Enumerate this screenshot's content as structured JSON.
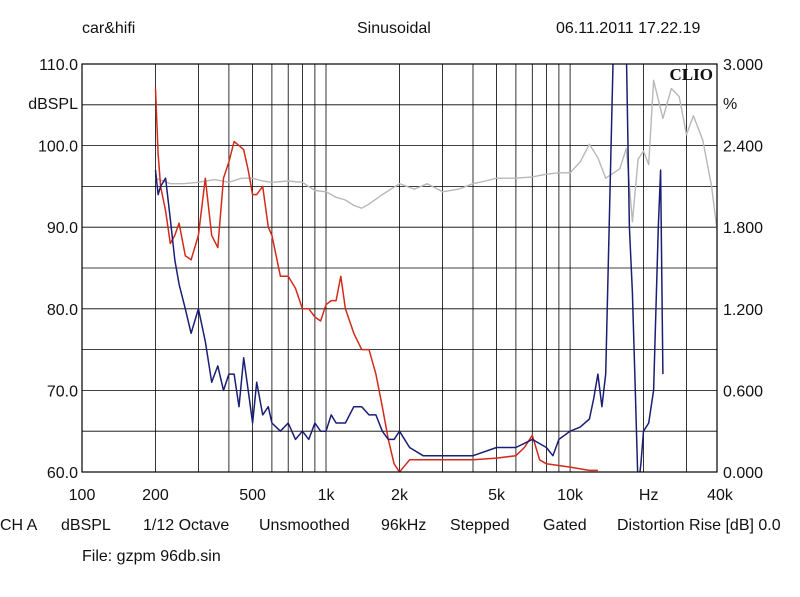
{
  "header": {
    "left": "car&hifi",
    "center": "Sinusoidal",
    "right": "06.11.2011 17.22.19"
  },
  "footer": {
    "settings": [
      "CH A",
      "dBSPL",
      "1/12 Octave",
      "Unsmoothed",
      "96kHz",
      "Stepped",
      "Gated",
      "Distortion Rise [dB] 0.0"
    ],
    "file": "File: gzpm 96db.sin"
  },
  "chart_data": {
    "type": "line",
    "brand": "CLIO",
    "xscale": "log",
    "xlim": [
      100,
      40000
    ],
    "xticks": [
      100,
      200,
      500,
      1000,
      2000,
      5000,
      10000,
      40000
    ],
    "xtick_labels": [
      "100",
      "200",
      "500",
      "1k",
      "2k",
      "5k",
      "10k",
      "40k"
    ],
    "xunit_label": "Hz",
    "ylim": [
      60,
      110
    ],
    "yticks": [
      60,
      70,
      80,
      90,
      100,
      110
    ],
    "ytick_labels": [
      "60.0",
      "70.0",
      "80.0",
      "90.0",
      "100.0",
      "110.0"
    ],
    "ylabel": "dBSPL",
    "y2lim": [
      0,
      3
    ],
    "y2ticks": [
      0,
      0.6,
      1.2,
      1.8,
      2.4,
      3.0
    ],
    "y2tick_labels": [
      "0.000",
      "0.600",
      "1.200",
      "1.800",
      "2.400",
      "3.000"
    ],
    "y2label": "%",
    "grid": true,
    "series": [
      {
        "axis": "y2",
        "color": "#b8b8b8",
        "x": [
          200,
          230,
          260,
          300,
          350,
          400,
          450,
          500,
          550,
          600,
          700,
          800,
          900,
          1000,
          1100,
          1200,
          1300,
          1400,
          1500,
          1700,
          2000,
          2300,
          2600,
          3000,
          3500,
          4000,
          4500,
          5000,
          6000,
          7000,
          8000,
          9000,
          10000,
          11000,
          12000,
          13000,
          14000,
          16000,
          17000,
          18000,
          19000,
          20000,
          21000,
          22000,
          24000,
          26000,
          28000,
          30000,
          32000,
          35000,
          38000,
          40000
        ],
        "y": [
          2.16,
          2.12,
          2.12,
          2.13,
          2.15,
          2.13,
          2.16,
          2.16,
          2.14,
          2.13,
          2.14,
          2.13,
          2.07,
          2.06,
          2.02,
          2.0,
          1.96,
          1.94,
          1.97,
          2.04,
          2.12,
          2.08,
          2.12,
          2.06,
          2.08,
          2.12,
          2.14,
          2.16,
          2.16,
          2.17,
          2.19,
          2.2,
          2.2,
          2.28,
          2.41,
          2.31,
          2.16,
          2.23,
          2.38,
          1.84,
          2.3,
          2.36,
          2.26,
          2.88,
          2.6,
          2.82,
          2.76,
          2.48,
          2.62,
          2.44,
          2.1,
          1.78
        ]
      },
      {
        "axis": "y",
        "color": "#d42a1a",
        "x": [
          200,
          205,
          210,
          220,
          230,
          240,
          250,
          265,
          280,
          300,
          320,
          340,
          360,
          380,
          400,
          420,
          440,
          460,
          480,
          500,
          520,
          550,
          580,
          600,
          650,
          700,
          750,
          800,
          850,
          900,
          950,
          1000,
          1050,
          1100,
          1150,
          1200,
          1300,
          1400,
          1500,
          1600,
          1700,
          1800,
          1900,
          2000,
          2200,
          2500,
          3000,
          4000,
          5000,
          6000,
          6500,
          7000,
          7500,
          8000,
          10000,
          12000,
          13000
        ],
        "y": [
          107,
          99,
          95,
          92,
          88,
          89,
          90.5,
          86.5,
          86,
          89,
          96,
          89,
          87.5,
          96,
          98,
          100.5,
          100,
          99.5,
          97,
          94,
          94,
          95,
          90,
          89,
          84,
          84,
          82.5,
          80,
          80,
          79,
          78.5,
          80.5,
          81,
          81,
          84,
          80,
          77,
          75,
          75,
          72,
          68,
          64,
          61,
          60,
          61.5,
          61.5,
          61.5,
          61.5,
          61.7,
          62,
          63,
          64.5,
          61.5,
          61,
          60.6,
          60.2,
          60.2
        ]
      },
      {
        "axis": "y",
        "color": "#1a1e74",
        "x": [
          200,
          205,
          210,
          220,
          230,
          240,
          250,
          265,
          280,
          300,
          320,
          340,
          360,
          380,
          400,
          420,
          440,
          460,
          480,
          500,
          520,
          550,
          580,
          600,
          650,
          700,
          750,
          800,
          850,
          900,
          950,
          1000,
          1050,
          1100,
          1200,
          1300,
          1400,
          1500,
          1600,
          1700,
          1800,
          1900,
          2000,
          2200,
          2500,
          3000,
          4000,
          5000,
          6000,
          7000,
          8000,
          8500,
          9000,
          10000,
          11000,
          12000,
          12500,
          13000,
          13500,
          14000,
          15000,
          16000,
          17000,
          17500,
          18000,
          18500,
          19000,
          19500,
          20000,
          21000,
          22000,
          23000,
          23500,
          24000
        ],
        "y": [
          97,
          94,
          95,
          96,
          91,
          86,
          83,
          80,
          77,
          80,
          76,
          71,
          73,
          70,
          72,
          72,
          68,
          74,
          70,
          66,
          71,
          67,
          68,
          66,
          65,
          66,
          64,
          65,
          64,
          66,
          65,
          65,
          67,
          66,
          66,
          68,
          68,
          67,
          67,
          65,
          64,
          64,
          65,
          63,
          62,
          62,
          62,
          63,
          63,
          64,
          63,
          62,
          64,
          65,
          65.5,
          66.5,
          69,
          72,
          68,
          72,
          110,
          112,
          112,
          90,
          82,
          70,
          58,
          61,
          65,
          66,
          70,
          90,
          97,
          72
        ]
      }
    ]
  }
}
